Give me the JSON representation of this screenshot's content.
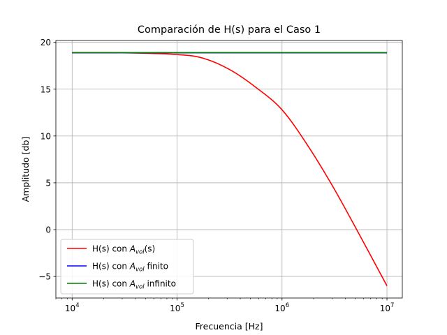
{
  "chart_data": {
    "type": "line",
    "title": "Comparación de H(s) para el Caso 1",
    "xlabel": "Frecuencia [Hz]",
    "ylabel": "Amplitudo [db]",
    "x_scale": "log",
    "xlim": [
      7000,
      14000000
    ],
    "ylim": [
      -7.3,
      20.2
    ],
    "grid": true,
    "legend_position": "lower-left",
    "x_ticks": [
      {
        "value": 10000,
        "base": "10",
        "exp": "4"
      },
      {
        "value": 100000,
        "base": "10",
        "exp": "5"
      },
      {
        "value": 1000000,
        "base": "10",
        "exp": "6"
      },
      {
        "value": 10000000,
        "base": "10",
        "exp": "7"
      }
    ],
    "y_ticks": [
      {
        "value": 20,
        "label": "20"
      },
      {
        "value": 15,
        "label": "15"
      },
      {
        "value": 10,
        "label": "10"
      },
      {
        "value": 5,
        "label": "5"
      },
      {
        "value": 0,
        "label": "0"
      },
      {
        "value": -5,
        "label": "−5"
      }
    ],
    "series": [
      {
        "name": "H(s) con A_vol(s)",
        "legend": {
          "prefix": "H(s) con ",
          "sym": "A",
          "sub": "vol",
          "suffix": "(s)"
        },
        "color": "#ff0000",
        "x": [
          10000,
          31623,
          100000,
          177828,
          316228,
          562341,
          1000000,
          1778279,
          3162278,
          5623413,
          10000000
        ],
        "y": [
          18.9,
          18.88,
          18.7,
          18.3,
          17.1,
          15.2,
          12.8,
          8.9,
          4.3,
          -0.8,
          -6.0
        ]
      },
      {
        "name": "H(s) con A_vol finito",
        "legend": {
          "prefix": "H(s) con ",
          "sym": "A",
          "sub": "vol",
          "suffix": " finito"
        },
        "color": "#0000ff",
        "x": [
          10000,
          10000000
        ],
        "y": [
          18.88,
          18.88
        ]
      },
      {
        "name": "H(s) con A_vol infinito",
        "legend": {
          "prefix": "H(s) con ",
          "sym": "A",
          "sub": "vol",
          "suffix": " infinito"
        },
        "color": "#008000",
        "x": [
          10000,
          10000000
        ],
        "y": [
          18.9,
          18.9
        ]
      }
    ]
  }
}
